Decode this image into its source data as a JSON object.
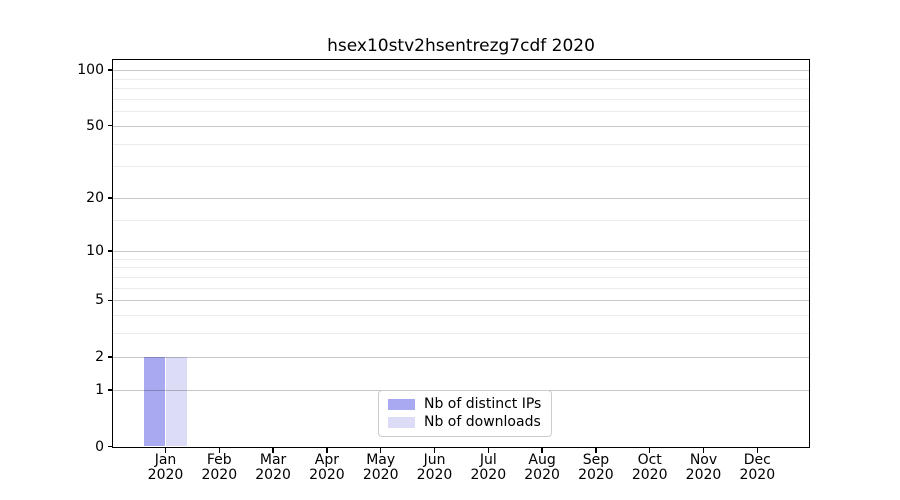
{
  "chart_data": {
    "type": "bar",
    "title": "hsex10stv2hsentrezg7cdf 2020",
    "categories": [
      "Jan",
      "Feb",
      "Mar",
      "Apr",
      "May",
      "Jun",
      "Jul",
      "Aug",
      "Sep",
      "Oct",
      "Nov",
      "Dec"
    ],
    "year_label": "2020",
    "series": [
      {
        "name": "Nb of distinct IPs",
        "color": "#a9a9f1",
        "values": [
          2,
          0,
          0,
          0,
          0,
          0,
          0,
          0,
          0,
          0,
          0,
          0
        ]
      },
      {
        "name": "Nb of downloads",
        "color": "#dcdcf7",
        "values": [
          2,
          0,
          0,
          0,
          0,
          0,
          0,
          0,
          0,
          0,
          0,
          0
        ]
      }
    ],
    "y_axis": {
      "scale": "log10(1+y)",
      "ticks": [
        0,
        1,
        2,
        5,
        10,
        20,
        50,
        100
      ],
      "minor_ticks": [
        3,
        4,
        6,
        7,
        8,
        9,
        15,
        30,
        40,
        60,
        70,
        80,
        90
      ],
      "ylim": [
        0,
        113.2
      ]
    },
    "x_axis": {
      "tick_label_lines": 2
    },
    "legend": {
      "position": "bottom-center",
      "entries": [
        "Nb of distinct IPs",
        "Nb of downloads"
      ]
    },
    "colors": {
      "axis": "#000000",
      "major_grid": "rgba(0,0,0,0.22)",
      "minor_grid": "rgba(0,0,0,0.08)",
      "legend_border": "#cccccc"
    }
  }
}
